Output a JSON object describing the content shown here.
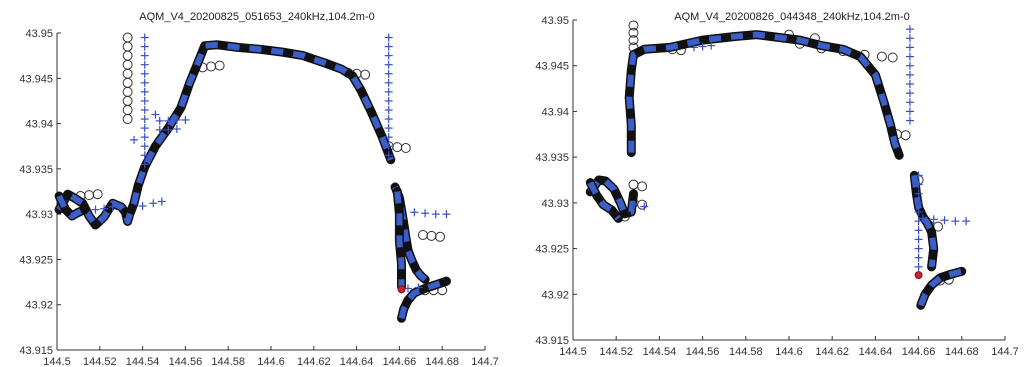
{
  "colors": {
    "black_track": "#111111",
    "blue_track": "#3b5ec8",
    "circle_marker": "#333333",
    "plus_marker": "#3b4fc4",
    "endpoint": "#d01e2a"
  },
  "chart_data": [
    {
      "type": "scatter",
      "title": "AQM_V4_20200825_051653_240kHz,104.2m-0",
      "xlabel": "",
      "ylabel": "",
      "xlim": [
        144.5,
        144.7
      ],
      "ylim": [
        43.915,
        43.95
      ],
      "xticks": [
        "144.5",
        "144.52",
        "144.54",
        "144.56",
        "144.58",
        "144.6",
        "144.62",
        "144.64",
        "144.66",
        "144.68",
        "144.7"
      ],
      "yticks": [
        "43.915",
        "43.92",
        "43.925",
        "43.93",
        "43.935",
        "43.94",
        "43.945",
        "43.95"
      ],
      "grid": false,
      "tracks": [
        {
          "x": [
            144.501,
            144.505,
            144.508,
            144.512,
            144.515,
            144.518,
            144.522,
            144.526,
            144.53,
            144.532,
            144.533,
            144.534,
            144.536,
            144.538,
            144.541,
            144.546,
            144.552,
            144.558,
            144.562,
            144.566,
            144.569,
            144.575,
            144.585,
            144.595,
            144.605,
            144.615,
            144.625,
            144.633,
            144.638,
            144.642,
            144.647,
            144.652,
            144.656
          ],
          "y": [
            43.9305,
            43.9322,
            43.9318,
            43.9312,
            43.9298,
            43.9288,
            43.9297,
            43.9312,
            43.9308,
            43.9302,
            43.9292,
            43.93,
            43.9312,
            43.9332,
            43.9352,
            43.9375,
            43.9395,
            43.9418,
            43.9445,
            43.9468,
            43.9486,
            43.9487,
            43.9484,
            43.9482,
            43.9479,
            43.9475,
            43.9467,
            43.946,
            43.9453,
            43.9437,
            43.9412,
            43.9385,
            43.936
          ]
        },
        {
          "x": [
            144.501,
            144.504,
            144.507,
            144.51,
            144.513
          ],
          "y": [
            43.932,
            43.9305,
            43.9298,
            43.9302,
            43.9305
          ]
        },
        {
          "x": [
            144.658,
            144.66,
            144.661,
            144.662,
            144.663,
            144.664,
            144.666,
            144.668,
            144.67,
            144.672
          ],
          "y": [
            43.933,
            43.9318,
            43.9305,
            43.929,
            43.9275,
            43.926,
            43.9248,
            43.9238,
            43.9232,
            43.9228
          ]
        },
        {
          "x": [
            144.661,
            144.662,
            144.664,
            144.667,
            144.672,
            144.677,
            144.682
          ],
          "y": [
            43.9185,
            43.9195,
            43.9205,
            43.9213,
            43.9218,
            43.9222,
            43.9226
          ]
        },
        {
          "x": [
            144.659,
            144.66,
            144.66,
            144.661,
            144.661
          ],
          "y": [
            43.9325,
            43.93,
            43.927,
            43.9245,
            43.922
          ]
        }
      ],
      "circle_points": [
        {
          "x": 144.533,
          "y": 43.9495
        },
        {
          "x": 144.533,
          "y": 43.9485
        },
        {
          "x": 144.533,
          "y": 43.9475
        },
        {
          "x": 144.533,
          "y": 43.9465
        },
        {
          "x": 144.533,
          "y": 43.9455
        },
        {
          "x": 144.533,
          "y": 43.9445
        },
        {
          "x": 144.533,
          "y": 43.9435
        },
        {
          "x": 144.533,
          "y": 43.9425
        },
        {
          "x": 144.533,
          "y": 43.9415
        },
        {
          "x": 144.533,
          "y": 43.9405
        },
        {
          "x": 144.568,
          "y": 43.9462
        },
        {
          "x": 144.572,
          "y": 43.9463
        },
        {
          "x": 144.576,
          "y": 43.9464
        },
        {
          "x": 144.636,
          "y": 43.9456
        },
        {
          "x": 144.64,
          "y": 43.9455
        },
        {
          "x": 144.644,
          "y": 43.9454
        },
        {
          "x": 144.655,
          "y": 43.9375
        },
        {
          "x": 144.659,
          "y": 43.9374
        },
        {
          "x": 144.663,
          "y": 43.9373
        },
        {
          "x": 144.511,
          "y": 43.932
        },
        {
          "x": 144.515,
          "y": 43.9321
        },
        {
          "x": 144.519,
          "y": 43.9322
        },
        {
          "x": 144.671,
          "y": 43.9277
        },
        {
          "x": 144.675,
          "y": 43.9276
        },
        {
          "x": 144.679,
          "y": 43.9275
        },
        {
          "x": 144.672,
          "y": 43.9216
        },
        {
          "x": 144.676,
          "y": 43.9216
        },
        {
          "x": 144.68,
          "y": 43.9216
        }
      ],
      "plus_points": [
        {
          "x": 144.541,
          "y": 43.9495
        },
        {
          "x": 144.541,
          "y": 43.9485
        },
        {
          "x": 144.541,
          "y": 43.9475
        },
        {
          "x": 144.541,
          "y": 43.9465
        },
        {
          "x": 144.541,
          "y": 43.9455
        },
        {
          "x": 144.541,
          "y": 43.9445
        },
        {
          "x": 144.541,
          "y": 43.9435
        },
        {
          "x": 144.541,
          "y": 43.9425
        },
        {
          "x": 144.541,
          "y": 43.9415
        },
        {
          "x": 144.541,
          "y": 43.9405
        },
        {
          "x": 144.541,
          "y": 43.9395
        },
        {
          "x": 144.541,
          "y": 43.9385
        },
        {
          "x": 144.541,
          "y": 43.9375
        },
        {
          "x": 144.541,
          "y": 43.9365
        },
        {
          "x": 144.541,
          "y": 43.9355
        },
        {
          "x": 144.536,
          "y": 43.9382
        },
        {
          "x": 144.546,
          "y": 43.941
        },
        {
          "x": 144.548,
          "y": 43.9403
        },
        {
          "x": 144.552,
          "y": 43.9403
        },
        {
          "x": 144.556,
          "y": 43.9404
        },
        {
          "x": 144.56,
          "y": 43.9404
        },
        {
          "x": 144.548,
          "y": 43.9393
        },
        {
          "x": 144.552,
          "y": 43.9393
        },
        {
          "x": 144.556,
          "y": 43.9394
        },
        {
          "x": 144.655,
          "y": 43.9495
        },
        {
          "x": 144.655,
          "y": 43.9485
        },
        {
          "x": 144.655,
          "y": 43.9475
        },
        {
          "x": 144.655,
          "y": 43.9465
        },
        {
          "x": 144.655,
          "y": 43.9455
        },
        {
          "x": 144.655,
          "y": 43.9445
        },
        {
          "x": 144.655,
          "y": 43.9435
        },
        {
          "x": 144.655,
          "y": 43.9425
        },
        {
          "x": 144.655,
          "y": 43.9415
        },
        {
          "x": 144.655,
          "y": 43.9405
        },
        {
          "x": 144.655,
          "y": 43.9395
        },
        {
          "x": 144.655,
          "y": 43.9385
        },
        {
          "x": 144.655,
          "y": 43.9375
        },
        {
          "x": 144.655,
          "y": 43.9365
        },
        {
          "x": 144.518,
          "y": 43.9305
        },
        {
          "x": 144.522,
          "y": 43.9306
        },
        {
          "x": 144.526,
          "y": 43.9308
        },
        {
          "x": 144.54,
          "y": 43.9309
        },
        {
          "x": 144.545,
          "y": 43.9312
        },
        {
          "x": 144.549,
          "y": 43.9314
        },
        {
          "x": 144.667,
          "y": 43.9302
        },
        {
          "x": 144.672,
          "y": 43.9301
        },
        {
          "x": 144.677,
          "y": 43.93
        },
        {
          "x": 144.682,
          "y": 43.93
        },
        {
          "x": 144.664,
          "y": 43.9218
        },
        {
          "x": 144.669,
          "y": 43.9219
        }
      ],
      "endpoint": {
        "x": 144.661,
        "y": 43.9217
      }
    },
    {
      "type": "scatter",
      "title": "AQM_V4_20200826_044348_240kHz,104.2m-0",
      "xlabel": "",
      "ylabel": "",
      "xlim": [
        144.5,
        144.7
      ],
      "ylim": [
        43.915,
        43.95
      ],
      "xticks": [
        "144.5",
        "144.52",
        "144.54",
        "144.56",
        "144.58",
        "144.6",
        "144.62",
        "144.64",
        "144.66",
        "144.68",
        "144.7"
      ],
      "yticks": [
        "43.915",
        "43.92",
        "43.925",
        "43.93",
        "43.935",
        "43.94",
        "43.945",
        "43.95"
      ],
      "grid": false,
      "tracks": [
        {
          "x": [
            144.527,
            144.527,
            144.526,
            144.527,
            144.528,
            144.533,
            144.545,
            144.56,
            144.575,
            144.585,
            144.595,
            144.605,
            144.615,
            144.625,
            144.633,
            144.64,
            144.644,
            144.647,
            144.649,
            144.651
          ],
          "y": [
            43.9355,
            43.9385,
            43.9415,
            43.9445,
            43.9462,
            43.9468,
            43.947,
            43.9478,
            43.9482,
            43.9484,
            43.9481,
            43.9478,
            43.9472,
            43.9468,
            43.946,
            43.944,
            43.941,
            43.9385,
            43.9365,
            43.9352
          ]
        },
        {
          "x": [
            144.508,
            144.512,
            144.515,
            144.519,
            144.522,
            144.524,
            144.527,
            144.528
          ],
          "y": [
            43.9312,
            43.9325,
            43.9324,
            43.9315,
            43.93,
            43.9288,
            43.929,
            43.931
          ]
        },
        {
          "x": [
            144.508,
            144.511,
            144.514,
            144.518,
            144.521
          ],
          "y": [
            43.9322,
            43.9308,
            43.9298,
            43.9292,
            43.9283
          ]
        },
        {
          "x": [
            144.658,
            144.659,
            144.66,
            144.662,
            144.664,
            144.666,
            144.667,
            144.666
          ],
          "y": [
            43.933,
            43.931,
            43.9295,
            43.9285,
            43.9278,
            43.9268,
            43.925,
            43.923
          ]
        },
        {
          "x": [
            144.661,
            144.663,
            144.666,
            144.67,
            144.675,
            144.68
          ],
          "y": [
            43.9188,
            43.92,
            43.921,
            43.9218,
            43.9222,
            43.9225
          ]
        }
      ],
      "circle_points": [
        {
          "x": 144.528,
          "y": 43.9494
        },
        {
          "x": 144.528,
          "y": 43.9486
        },
        {
          "x": 144.528,
          "y": 43.9478
        },
        {
          "x": 144.528,
          "y": 43.947
        },
        {
          "x": 144.546,
          "y": 43.9468
        },
        {
          "x": 144.55,
          "y": 43.9467
        },
        {
          "x": 144.605,
          "y": 43.9474
        },
        {
          "x": 144.615,
          "y": 43.9469
        },
        {
          "x": 144.625,
          "y": 43.9466
        },
        {
          "x": 144.635,
          "y": 43.9462
        },
        {
          "x": 144.643,
          "y": 43.946
        },
        {
          "x": 144.648,
          "y": 43.9459
        },
        {
          "x": 144.6,
          "y": 43.9484
        },
        {
          "x": 144.612,
          "y": 43.948
        },
        {
          "x": 144.65,
          "y": 43.9375
        },
        {
          "x": 144.654,
          "y": 43.9374
        },
        {
          "x": 144.528,
          "y": 43.932
        },
        {
          "x": 144.532,
          "y": 43.9318
        },
        {
          "x": 144.528,
          "y": 43.93
        },
        {
          "x": 144.532,
          "y": 43.9298
        },
        {
          "x": 144.524,
          "y": 43.9285
        },
        {
          "x": 144.66,
          "y": 43.9325
        },
        {
          "x": 144.665,
          "y": 43.9275
        },
        {
          "x": 144.669,
          "y": 43.9274
        },
        {
          "x": 144.67,
          "y": 43.9215
        },
        {
          "x": 144.674,
          "y": 43.9216
        }
      ],
      "plus_points": [
        {
          "x": 144.656,
          "y": 43.949
        },
        {
          "x": 144.656,
          "y": 43.948
        },
        {
          "x": 144.656,
          "y": 43.947
        },
        {
          "x": 144.656,
          "y": 43.946
        },
        {
          "x": 144.656,
          "y": 43.945
        },
        {
          "x": 144.656,
          "y": 43.944
        },
        {
          "x": 144.656,
          "y": 43.943
        },
        {
          "x": 144.656,
          "y": 43.942
        },
        {
          "x": 144.656,
          "y": 43.941
        },
        {
          "x": 144.656,
          "y": 43.94
        },
        {
          "x": 144.656,
          "y": 43.939
        },
        {
          "x": 144.66,
          "y": 43.933
        },
        {
          "x": 144.66,
          "y": 43.932
        },
        {
          "x": 144.66,
          "y": 43.931
        },
        {
          "x": 144.66,
          "y": 43.93
        },
        {
          "x": 144.66,
          "y": 43.929
        },
        {
          "x": 144.66,
          "y": 43.928
        },
        {
          "x": 144.66,
          "y": 43.927
        },
        {
          "x": 144.66,
          "y": 43.926
        },
        {
          "x": 144.66,
          "y": 43.925
        },
        {
          "x": 144.66,
          "y": 43.924
        },
        {
          "x": 144.66,
          "y": 43.923
        },
        {
          "x": 144.556,
          "y": 43.947
        },
        {
          "x": 144.56,
          "y": 43.9471
        },
        {
          "x": 144.564,
          "y": 43.9472
        },
        {
          "x": 144.662,
          "y": 43.9283
        },
        {
          "x": 144.667,
          "y": 43.9282
        },
        {
          "x": 144.672,
          "y": 43.9281
        },
        {
          "x": 144.677,
          "y": 43.928
        },
        {
          "x": 144.682,
          "y": 43.928
        },
        {
          "x": 144.528,
          "y": 43.9298
        },
        {
          "x": 144.533,
          "y": 43.9296
        }
      ],
      "endpoint": {
        "x": 144.66,
        "y": 43.9221
      }
    }
  ]
}
